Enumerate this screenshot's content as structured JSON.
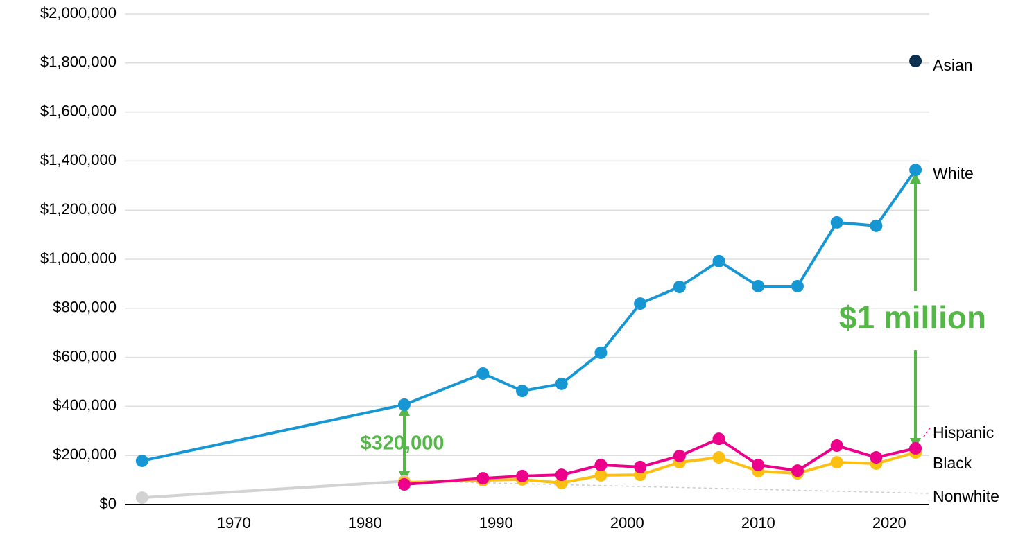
{
  "chart_data": {
    "type": "line",
    "x": [
      1963,
      1983,
      1989,
      1992,
      1995,
      1998,
      2001,
      2004,
      2007,
      2010,
      2013,
      2016,
      2019,
      2022
    ],
    "series": [
      {
        "name": "Nonwhite",
        "color": "#d2d2d2",
        "values": [
          28000,
          95000,
          null,
          null,
          null,
          null,
          null,
          null,
          null,
          null,
          null,
          null,
          null,
          null
        ]
      },
      {
        "name": "Black",
        "color": "#fdbf11",
        "values": [
          null,
          90000,
          99000,
          102000,
          88000,
          119000,
          121000,
          172000,
          192000,
          136000,
          127000,
          172000,
          167000,
          212000
        ]
      },
      {
        "name": "Hispanic",
        "color": "#ec008b",
        "values": [
          null,
          82000,
          107000,
          116000,
          121000,
          161000,
          153000,
          198000,
          268000,
          161000,
          138000,
          240000,
          192000,
          229000
        ]
      },
      {
        "name": "White",
        "color": "#1696d2",
        "values": [
          178000,
          407000,
          534000,
          463000,
          492000,
          619000,
          819000,
          887000,
          992000,
          890000,
          890000,
          1150000,
          1136000,
          1364000
        ]
      },
      {
        "name": "Asian",
        "color": "#0a2e4d",
        "values": [
          null,
          null,
          null,
          null,
          null,
          null,
          null,
          null,
          null,
          null,
          null,
          null,
          null,
          1808000
        ]
      }
    ],
    "xlim": [
      1962,
      2023
    ],
    "xticks": [
      1970,
      1980,
      1990,
      2000,
      2010,
      2020
    ],
    "ylim": [
      0,
      2000000
    ],
    "yticks": [
      {
        "value": 0,
        "label": "$0"
      },
      {
        "value": 200000,
        "label": "$200,000"
      },
      {
        "value": 400000,
        "label": "$400,000"
      },
      {
        "value": 600000,
        "label": "$600,000"
      },
      {
        "value": 800000,
        "label": "$800,000"
      },
      {
        "value": 1000000,
        "label": "$1,000,000"
      },
      {
        "value": 1200000,
        "label": "$1,200,000"
      },
      {
        "value": 1400000,
        "label": "$1,400,000"
      },
      {
        "value": 1600000,
        "label": "$1,600,000"
      },
      {
        "value": 1800000,
        "label": "$1,800,000"
      },
      {
        "value": 2000000,
        "label": "$2,000,000"
      }
    ],
    "grid": true,
    "annotations": [
      "$320,000",
      "$1 million"
    ]
  }
}
